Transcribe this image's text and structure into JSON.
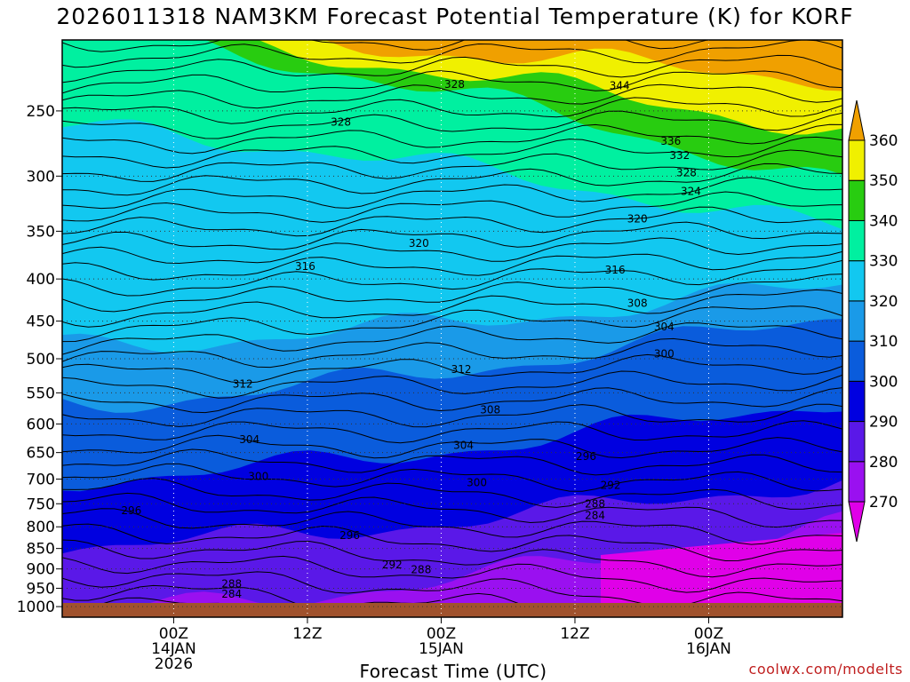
{
  "chart_data": {
    "type": "heatmap",
    "title": "2026011318 NAM3KM Forecast Potential Temperature (K) for KORF",
    "xlabel": "Forecast Time (UTC)",
    "ylabel": "",
    "y_axis": {
      "scale": "pressure",
      "ticks": [
        250,
        300,
        350,
        400,
        450,
        500,
        550,
        600,
        650,
        700,
        750,
        800,
        850,
        900,
        950,
        1000
      ],
      "labels": [
        "250",
        "300",
        "350",
        "400",
        "450",
        "500",
        "550",
        "600",
        "650",
        "700",
        "750",
        "800",
        "850",
        "900",
        "950",
        "1000"
      ],
      "range": [
        1030,
        205
      ]
    },
    "x_axis": {
      "hours_range": [
        -5,
        30
      ],
      "ticks": [
        {
          "hours": 0,
          "line1": "00Z",
          "line2": "14JAN",
          "line3": "2026"
        },
        {
          "hours": 6,
          "line1": "12Z",
          "line2": "",
          "line3": ""
        },
        {
          "hours": 12,
          "line1": "00Z",
          "line2": "15JAN",
          "line3": ""
        },
        {
          "hours": 18,
          "line1": "12Z",
          "line2": "",
          "line3": ""
        },
        {
          "hours": 24,
          "line1": "00Z",
          "line2": "16JAN",
          "line3": ""
        }
      ]
    },
    "colorbar": {
      "levels": [
        270,
        280,
        290,
        300,
        310,
        320,
        330,
        340,
        350,
        360
      ],
      "labels": [
        "270",
        "280",
        "290",
        "300",
        "310",
        "320",
        "330",
        "340",
        "350",
        "360"
      ],
      "colors": [
        "#e000e8",
        "#9a10f0",
        "#5a18e8",
        "#0000e0",
        "#0a5cdc",
        "#1a9ae8",
        "#12c8f0",
        "#00f0a0",
        "#28cc10",
        "#f0f000",
        "#f0a000"
      ]
    },
    "contour_labels": [
      {
        "text": "328",
        "hours": 7.5,
        "p": 258
      },
      {
        "text": "328",
        "hours": 12.6,
        "p": 232
      },
      {
        "text": "344",
        "hours": 20,
        "p": 233
      },
      {
        "text": "336",
        "hours": 22.3,
        "p": 272
      },
      {
        "text": "332",
        "hours": 22.7,
        "p": 283
      },
      {
        "text": "328",
        "hours": 23,
        "p": 297
      },
      {
        "text": "324",
        "hours": 23.2,
        "p": 313
      },
      {
        "text": "320",
        "hours": 20.8,
        "p": 338
      },
      {
        "text": "320",
        "hours": 11,
        "p": 362
      },
      {
        "text": "316",
        "hours": 5.9,
        "p": 386
      },
      {
        "text": "316",
        "hours": 19.8,
        "p": 390
      },
      {
        "text": "308",
        "hours": 20.8,
        "p": 428
      },
      {
        "text": "304",
        "hours": 22,
        "p": 457
      },
      {
        "text": "300",
        "hours": 22,
        "p": 493
      },
      {
        "text": "312",
        "hours": 12.9,
        "p": 515
      },
      {
        "text": "312",
        "hours": 3.1,
        "p": 537
      },
      {
        "text": "308",
        "hours": 14.2,
        "p": 577
      },
      {
        "text": "304",
        "hours": 3.4,
        "p": 627
      },
      {
        "text": "304",
        "hours": 13,
        "p": 637
      },
      {
        "text": "296",
        "hours": 18.5,
        "p": 657
      },
      {
        "text": "300",
        "hours": 3.8,
        "p": 695
      },
      {
        "text": "300",
        "hours": 13.6,
        "p": 707
      },
      {
        "text": "292",
        "hours": 19.6,
        "p": 712
      },
      {
        "text": "288",
        "hours": 18.9,
        "p": 750
      },
      {
        "text": "284",
        "hours": 18.9,
        "p": 775
      },
      {
        "text": "296",
        "hours": -1.9,
        "p": 765
      },
      {
        "text": "296",
        "hours": 7.9,
        "p": 820
      },
      {
        "text": "292",
        "hours": 9.8,
        "p": 890
      },
      {
        "text": "288",
        "hours": 11.1,
        "p": 902
      },
      {
        "text": "288",
        "hours": 2.6,
        "p": 938
      },
      {
        "text": "284",
        "hours": 2.6,
        "p": 965
      }
    ]
  },
  "footer": {
    "xlabel": "Forecast Time (UTC)",
    "watermark": "coolwx.com/modelts"
  }
}
